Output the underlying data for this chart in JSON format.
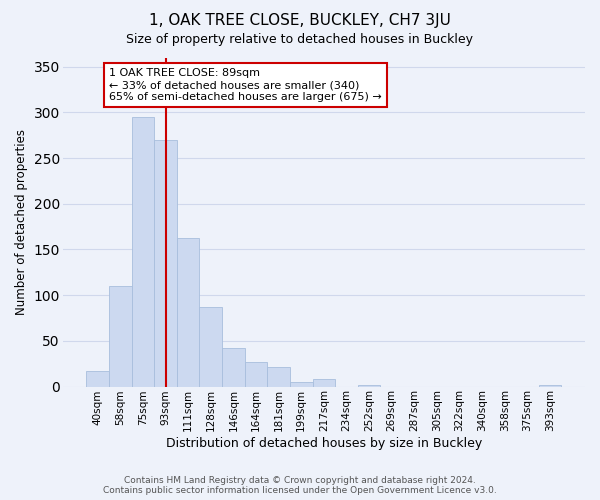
{
  "title": "1, OAK TREE CLOSE, BUCKLEY, CH7 3JU",
  "subtitle": "Size of property relative to detached houses in Buckley",
  "xlabel": "Distribution of detached houses by size in Buckley",
  "ylabel": "Number of detached properties",
  "bar_color": "#ccd9f0",
  "bar_edge_color": "#a8bedd",
  "categories": [
    "40sqm",
    "58sqm",
    "75sqm",
    "93sqm",
    "111sqm",
    "128sqm",
    "146sqm",
    "164sqm",
    "181sqm",
    "199sqm",
    "217sqm",
    "234sqm",
    "252sqm",
    "269sqm",
    "287sqm",
    "305sqm",
    "322sqm",
    "340sqm",
    "358sqm",
    "375sqm",
    "393sqm"
  ],
  "values": [
    17,
    110,
    295,
    270,
    163,
    87,
    42,
    27,
    21,
    5,
    8,
    0,
    2,
    0,
    0,
    0,
    0,
    0,
    0,
    0,
    2
  ],
  "vline_x": 3,
  "vline_color": "#cc0000",
  "annotation_text": "1 OAK TREE CLOSE: 89sqm\n← 33% of detached houses are smaller (340)\n65% of semi-detached houses are larger (675) →",
  "annotation_box_color": "white",
  "annotation_box_edge_color": "#cc0000",
  "ylim": [
    0,
    360
  ],
  "yticks": [
    0,
    50,
    100,
    150,
    200,
    250,
    300,
    350
  ],
  "footnote": "Contains HM Land Registry data © Crown copyright and database right 2024.\nContains public sector information licensed under the Open Government Licence v3.0.",
  "grid_color": "#d0d8ec",
  "background_color": "#eef2fa"
}
